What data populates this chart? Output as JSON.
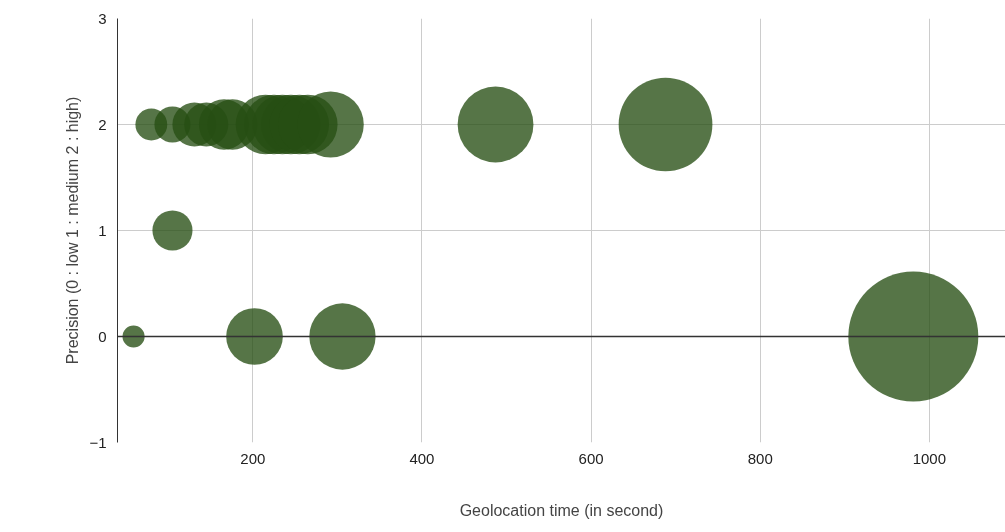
{
  "chart_data": {
    "type": "bubble",
    "xlabel": "Geolocation time (in second)",
    "ylabel": "Precision (0 : low 1 : medium 2 : high)",
    "xlim": [
      40,
      1090
    ],
    "ylim": [
      -1,
      3
    ],
    "xticks": [
      200,
      400,
      600,
      800,
      1000
    ],
    "yticks": [
      -1,
      0,
      1,
      2,
      3
    ],
    "grid": true,
    "ref_lines": [
      {
        "axis": "y",
        "value": 0,
        "color": "#333333"
      }
    ],
    "series": [
      {
        "color": "#274e13",
        "x": [
          80,
          105,
          131,
          145,
          166,
          176,
          215,
          225,
          235,
          245,
          255,
          265,
          292,
          487,
          688,
          105,
          59,
          202,
          306,
          981
        ],
        "values": [
          2,
          2,
          2,
          2,
          2,
          2,
          2,
          2,
          2,
          2,
          2,
          2,
          2,
          2,
          2,
          1,
          0,
          0,
          0,
          0
        ],
        "sizes": [
          0.06,
          0.077,
          0.115,
          0.115,
          0.15,
          0.15,
          0.21,
          0.21,
          0.21,
          0.21,
          0.21,
          0.21,
          0.26,
          0.34,
          0.52,
          0.095,
          0.029,
          0.19,
          0.26,
          1
        ]
      }
    ]
  }
}
